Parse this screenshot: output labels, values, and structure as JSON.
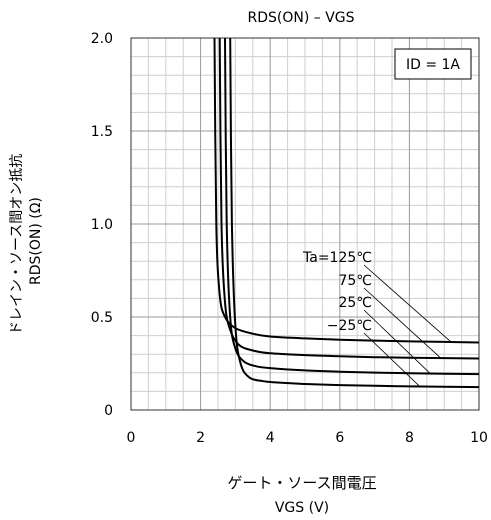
{
  "chart_data": {
    "type": "line",
    "title": "RDS(ON) – VGS",
    "xlabel_jp": "ゲート・ソース間電圧",
    "xlabel": "VGS (V)",
    "ylabel_jp": "ドレイン・ソース間オン抵抗",
    "ylabel": "RDS(ON) (Ω)",
    "xlim": [
      0,
      10
    ],
    "ylim": [
      0,
      2.0
    ],
    "x_ticks": [
      "0",
      "2",
      "4",
      "6",
      "8",
      "10"
    ],
    "y_ticks": [
      "0",
      "0.5",
      "1.0",
      "1.5",
      "2.0"
    ],
    "grid": true,
    "condition_box": "ID = 1A",
    "series": [
      {
        "name": "Ta=125℃",
        "x": [
          2.4,
          2.45,
          2.55,
          2.7,
          3.0,
          3.5,
          4.0,
          5.0,
          6.0,
          7.0,
          8.0,
          9.0,
          10.0
        ],
        "values": [
          2.0,
          1.0,
          0.62,
          0.5,
          0.44,
          0.41,
          0.395,
          0.385,
          0.378,
          0.373,
          0.369,
          0.366,
          0.363
        ]
      },
      {
        "name": "75℃",
        "x": [
          2.55,
          2.6,
          2.7,
          2.85,
          3.1,
          3.5,
          4.0,
          5.0,
          6.0,
          7.0,
          8.0,
          9.0,
          10.0
        ],
        "values": [
          2.0,
          1.0,
          0.58,
          0.43,
          0.35,
          0.32,
          0.305,
          0.295,
          0.289,
          0.284,
          0.281,
          0.279,
          0.277
        ]
      },
      {
        "name": "25℃",
        "x": [
          2.7,
          2.75,
          2.85,
          3.0,
          3.25,
          3.6,
          4.0,
          5.0,
          6.0,
          7.0,
          8.0,
          9.0,
          10.0
        ],
        "values": [
          2.0,
          1.0,
          0.5,
          0.33,
          0.26,
          0.235,
          0.225,
          0.213,
          0.206,
          0.201,
          0.198,
          0.195,
          0.193
        ]
      },
      {
        "name": "−25℃",
        "x": [
          2.85,
          2.9,
          3.0,
          3.15,
          3.4,
          3.8,
          4.2,
          5.0,
          6.0,
          7.0,
          8.0,
          9.0,
          10.0
        ],
        "values": [
          2.0,
          1.0,
          0.45,
          0.25,
          0.175,
          0.155,
          0.148,
          0.14,
          0.134,
          0.13,
          0.127,
          0.125,
          0.123
        ]
      }
    ],
    "annotations": [
      {
        "text": "Ta=125℃",
        "point": [
          9.2,
          0.365
        ]
      },
      {
        "text": "75℃",
        "point": [
          8.9,
          0.279
        ]
      },
      {
        "text": "25℃",
        "point": [
          8.6,
          0.196
        ]
      },
      {
        "text": "−25℃",
        "point": [
          8.3,
          0.126
        ]
      }
    ]
  }
}
